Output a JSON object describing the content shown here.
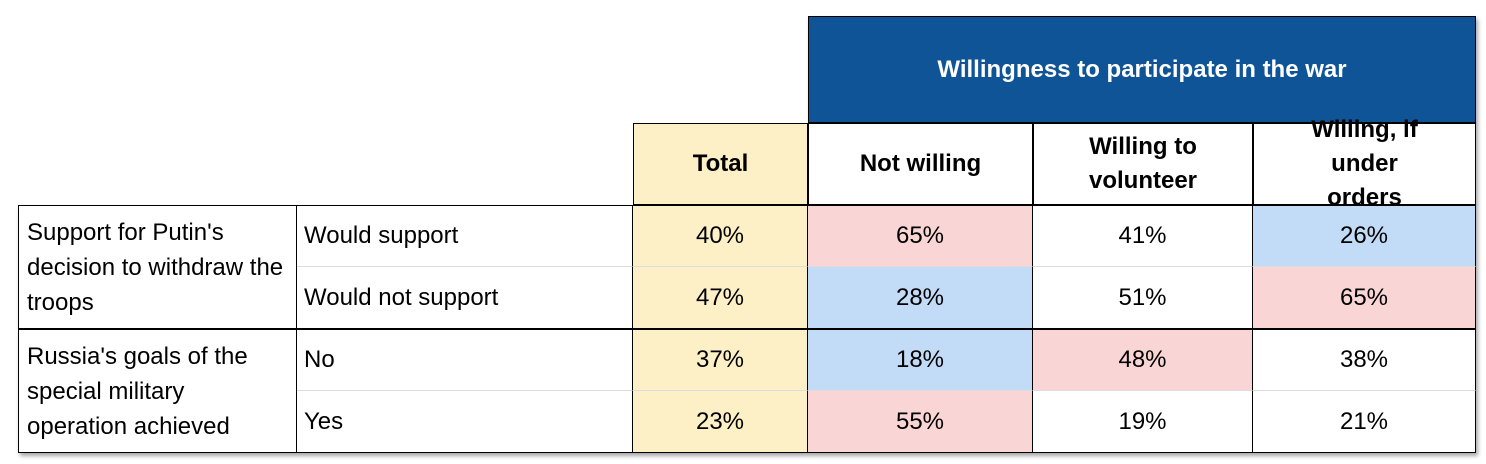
{
  "header": {
    "group": "Willingness to participate in the war",
    "columns": [
      "Total",
      "Not willing",
      "Willing to volunteer",
      "Willing, if under orders"
    ]
  },
  "groups": [
    {
      "label": "Support for Putin's decision to withdraw the troops",
      "rows": [
        {
          "label": "Would support",
          "values": [
            "40%",
            "65%",
            "41%",
            "26%"
          ]
        },
        {
          "label": "Would not support",
          "values": [
            "47%",
            "28%",
            "51%",
            "65%"
          ]
        }
      ]
    },
    {
      "label": "Russia's goals of the special military operation achieved",
      "rows": [
        {
          "label": "No",
          "values": [
            "37%",
            "18%",
            "48%",
            "38%"
          ]
        },
        {
          "label": "Yes",
          "values": [
            "23%",
            "55%",
            "19%",
            "21%"
          ]
        }
      ]
    }
  ]
}
